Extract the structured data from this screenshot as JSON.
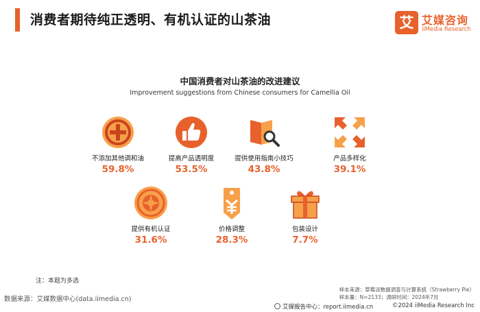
{
  "header": {
    "title": "消费者期待纯正透明、有机认证的山茶油",
    "logo": {
      "mark": "艾",
      "name_cn": "艾媒咨询",
      "name_en": "iiMedia Research"
    }
  },
  "chart_data": {
    "type": "table",
    "title": "中国消费者对山茶油的改进建议",
    "subtitle": "Improvement suggestions from Chinese consumers for Camellia Oil",
    "categories": [
      "不添加其他调和油",
      "提高产品透明度",
      "提供使用指南小技巧",
      "产品多样化",
      "提供有机认证",
      "价格调整",
      "包装设计"
    ],
    "values": [
      59.8,
      53.5,
      43.8,
      39.1,
      31.6,
      28.3,
      7.7
    ],
    "value_labels": [
      "59.8%",
      "53.5%",
      "43.8%",
      "39.1%",
      "31.6%",
      "28.3%",
      "7.7%"
    ],
    "icons": [
      "plus-circle-icon",
      "thumbs-up-icon",
      "guide-book-search-icon",
      "expand-arrows-icon",
      "natural-product-badge-icon",
      "price-tag-icon",
      "gift-box-icon"
    ],
    "unit": "%"
  },
  "footer": {
    "note": "注：本题为多选",
    "source": "数据来源：艾媒数据中心(data.iimedia.cn)",
    "sample_source": "样本来源：草莓派数据调查与计算系统（Strawberry Pie）",
    "sample_size": "样本量：N=2133；调研时间：2024年7月",
    "report_center": "艾媒报告中心：report.iimedia.cn",
    "copyright": "©2024  iiMedia Research  Inc"
  },
  "colors": {
    "accent": "#e8612c",
    "light": "#f7a04a"
  }
}
